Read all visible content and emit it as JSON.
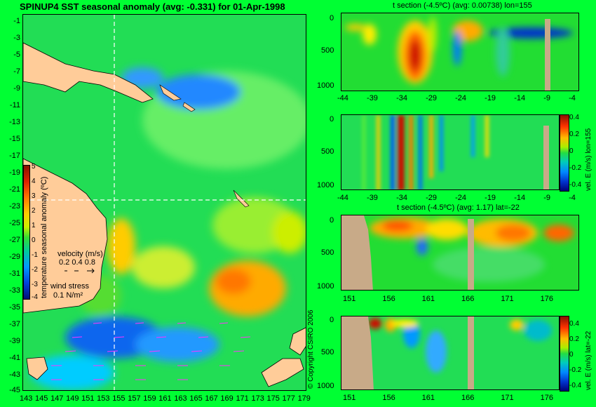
{
  "main_map": {
    "title": "SPINUP4 SST seasonal anomaly  (avg: -0.331)  for 01-Apr-1998",
    "lat_ticks": [
      "-1",
      "-3",
      "-5",
      "-7",
      "-9",
      "-11",
      "-13",
      "-15",
      "-17",
      "-19",
      "-21",
      "-23",
      "-25",
      "-27",
      "-29",
      "-31",
      "-33",
      "-35",
      "-37",
      "-39",
      "-41",
      "-43",
      "-45"
    ],
    "lon_ticks": [
      "143",
      "145",
      "147",
      "149",
      "151",
      "153",
      "155",
      "157",
      "159",
      "161",
      "163",
      "165",
      "167",
      "169",
      "171",
      "173",
      "175",
      "177",
      "179"
    ],
    "colorbar": {
      "label": "temperature seasonal anomaly (ºC)",
      "ticks": [
        "5",
        "4",
        "3",
        "2",
        "1",
        "0",
        "-1",
        "-2",
        "-3",
        "-4"
      ]
    },
    "velocity_legend": {
      "title": "velocity (m/s)",
      "values": "0.2 0.4 0.8"
    },
    "wind_legend": {
      "title": "wind stress",
      "value": "0.1 N/m²"
    },
    "copyright": "© Copyright CSIRO 2006"
  },
  "panels": [
    {
      "title": "t section (-4.5ºC) (avg: 0.00738) lon=155",
      "x_ticks": [
        "-44",
        "-39",
        "-34",
        "-29",
        "-24",
        "-19",
        "-14",
        "-9",
        "-4"
      ],
      "y_ticks": [
        "0",
        "500",
        "1000"
      ]
    },
    {
      "title": "",
      "x_ticks": [
        "-44",
        "-39",
        "-34",
        "-29",
        "-24",
        "-19",
        "-14",
        "-9",
        "-4"
      ],
      "y_ticks": [
        "0",
        "500",
        "1000"
      ],
      "colorbar": {
        "label": "vel. E (m/s) lon=155",
        "ticks": [
          "0.4",
          "0.2",
          "0",
          "-0.2",
          "-0.4"
        ]
      }
    },
    {
      "title": "t section (-4.5ºC) (avg: 1.17) lat=-22",
      "x_ticks": [
        "151",
        "156",
        "161",
        "166",
        "171",
        "176"
      ],
      "y_ticks": [
        "0",
        "500",
        "1000"
      ]
    },
    {
      "title": "",
      "x_ticks": [
        "151",
        "156",
        "161",
        "166",
        "171",
        "176"
      ],
      "y_ticks": [
        "0",
        "500",
        "1000"
      ],
      "colorbar": {
        "label": "vel. E (m/s) lat=-22",
        "ticks": [
          "0.4",
          "0.2",
          "0",
          "-0.2",
          "-0.4"
        ]
      }
    }
  ]
}
